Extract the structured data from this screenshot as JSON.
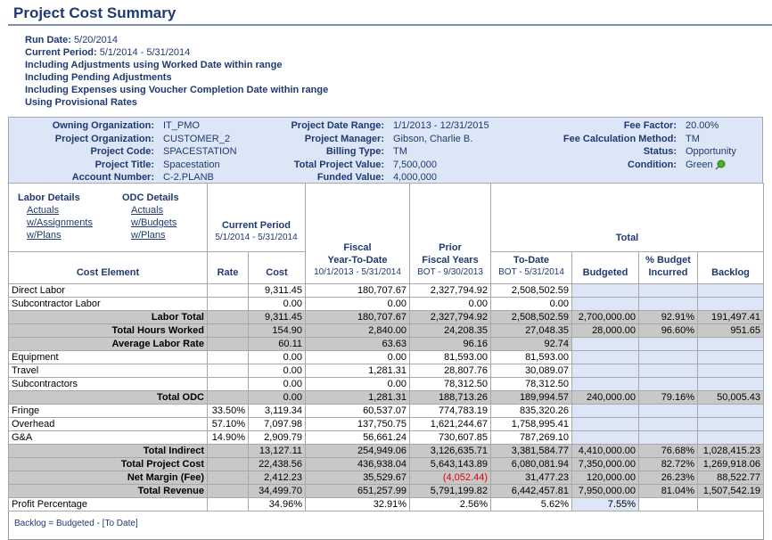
{
  "header": {
    "title": "Project Cost Summary"
  },
  "run_info": {
    "lines": [
      {
        "label": "Run Date:",
        "value": "5/20/2014"
      },
      {
        "label": "Current Period:",
        "value": "5/1/2014 - 5/31/2014"
      },
      {
        "label": "Including Adjustments using Worked Date within range"
      },
      {
        "label": "Including Pending Adjustments"
      },
      {
        "label": "Including Expenses using Voucher Completion Date within range"
      },
      {
        "label": "Using Provisional Rates"
      }
    ]
  },
  "project_info": {
    "columns": [
      [
        {
          "label": "Owning Organization:",
          "value": "IT_PMO"
        },
        {
          "label": "Project Organization:",
          "value": "CUSTOMER_2"
        },
        {
          "label": "Project Code:",
          "value": "SPACESTATION"
        },
        {
          "label": "Project Title:",
          "value": "Spacestation"
        },
        {
          "label": "Account Number:",
          "value": "C-2.PLANB"
        }
      ],
      [
        {
          "label": "Project Date Range:",
          "value": "1/1/2013 - 12/31/2015"
        },
        {
          "label": "Project Manager:",
          "value": "Gibson, Charlie B."
        },
        {
          "label": "Billing Type:",
          "value": "TM"
        },
        {
          "label": "Total Project Value:",
          "value": "7,500,000"
        },
        {
          "label": "Funded Value:",
          "value": "4,000,000"
        }
      ],
      [
        {
          "label": "Fee Factor:",
          "value": "20.00%"
        },
        {
          "label": "Fee Calculation Method:",
          "value": "TM"
        },
        {
          "label": "Status:",
          "value": "Opportunity"
        },
        {
          "label": "Condition:",
          "value": "Green"
        }
      ]
    ]
  },
  "table": {
    "labor_details": {
      "title": "Labor Details",
      "links": [
        "Actuals",
        "w/Assignments",
        "w/Plans"
      ]
    },
    "odc_details": {
      "title": "ODC Details",
      "links": [
        "Actuals",
        "w/Budgets",
        "w/Plans"
      ]
    },
    "current_period": {
      "title": "Current Period",
      "range": "5/1/2014 - 5/31/2014"
    },
    "fiscal_ytd": {
      "lines": [
        "Fiscal",
        "Year-To-Date"
      ],
      "range": "10/1/2013 - 5/31/2014"
    },
    "prior_years": {
      "lines": [
        "Prior",
        "Fiscal Years"
      ],
      "range": "BOT - 9/30/2013"
    },
    "total": "Total",
    "columns": {
      "cost_element": "Cost Element",
      "rate": "Rate",
      "cost": "Cost",
      "to_date": {
        "title": "To-Date",
        "range": "BOT - 5/31/2014"
      },
      "budgeted": "Budgeted",
      "pct_budget": [
        "% Budget",
        "Incurred"
      ],
      "backlog": "Backlog"
    },
    "rows": [
      {
        "label": "Direct Labor",
        "cells": [
          null,
          "9,311.45",
          "180,707.67",
          "2,327,794.92",
          "2,508,502.59",
          null,
          null,
          null
        ]
      },
      {
        "label": "Subcontractor Labor",
        "cells": [
          null,
          "0.00",
          "0.00",
          "0.00",
          "0.00",
          null,
          null,
          null
        ]
      },
      {
        "label": "Labor Total",
        "total": true,
        "cells": [
          null,
          "9,311.45",
          "180,707.67",
          "2,327,794.92",
          "2,508,502.59",
          "2,700,000.00",
          "92.91%",
          "191,497.41"
        ]
      },
      {
        "label": "Total Hours Worked",
        "total": true,
        "cells": [
          null,
          "154.90",
          "2,840.00",
          "24,208.35",
          "27,048.35",
          "28,000.00",
          "96.60%",
          "951.65"
        ]
      },
      {
        "label": "Average Labor Rate",
        "total": true,
        "cells": [
          null,
          "60.11",
          "63.63",
          "96.16",
          "92.74",
          null,
          null,
          null
        ]
      },
      {
        "label": "Equipment",
        "cells": [
          null,
          "0.00",
          "0.00",
          "81,593.00",
          "81,593.00",
          null,
          null,
          null
        ]
      },
      {
        "label": "Travel",
        "cells": [
          null,
          "0.00",
          "1,281.31",
          "28,807.76",
          "30,089.07",
          null,
          null,
          null
        ]
      },
      {
        "label": "Subcontractors",
        "cells": [
          null,
          "0.00",
          "0.00",
          "78,312.50",
          "78,312.50",
          null,
          null,
          null
        ]
      },
      {
        "label": "Total ODC",
        "total": true,
        "cells": [
          null,
          "0.00",
          "1,281.31",
          "188,713.26",
          "189,994.57",
          "240,000.00",
          "79.16%",
          "50,005.43"
        ]
      },
      {
        "label": "Fringe",
        "cells": [
          "33.50%",
          "3,119.34",
          "60,537.07",
          "774,783.19",
          "835,320.26",
          null,
          null,
          null
        ]
      },
      {
        "label": "Overhead",
        "cells": [
          "57.10%",
          "7,097.98",
          "137,750.75",
          "1,621,244.67",
          "1,758,995.41",
          null,
          null,
          null
        ]
      },
      {
        "label": "G&A",
        "cells": [
          "14.90%",
          "2,909.79",
          "56,661.24",
          "730,607.85",
          "787,269.10",
          null,
          null,
          null
        ]
      },
      {
        "label": "Total Indirect",
        "total": true,
        "cells": [
          null,
          "13,127.11",
          "254,949.06",
          "3,126,635.71",
          "3,381,584.77",
          "4,410,000.00",
          "76.68%",
          "1,028,415.23"
        ]
      },
      {
        "label": "Total Project Cost",
        "total": true,
        "cells": [
          null,
          "22,438.56",
          "436,938.04",
          "5,643,143.89",
          "6,080,081.94",
          "7,350,000.00",
          "82.72%",
          "1,269,918.06"
        ]
      },
      {
        "label": "Net Margin (Fee)",
        "total": true,
        "cells": [
          null,
          "2,412.23",
          "35,529.67",
          "(4,052.44)",
          "31,477.23",
          "120,000.00",
          "26.23%",
          "88,522.77"
        ]
      },
      {
        "label": "Total Revenue",
        "total": true,
        "cells": [
          null,
          "34,499.70",
          "651,257.99",
          "5,791,199.82",
          "6,442,457.81",
          "7,950,000.00",
          "81.04%",
          "1,507,542.19"
        ]
      },
      {
        "label": "Profit Percentage",
        "cells": [
          null,
          "34.96%",
          "32.91%",
          "2.56%",
          "5.62%",
          "7.55%",
          null,
          null
        ]
      }
    ]
  },
  "footer": "Backlog = Budgeted - [To Date]"
}
